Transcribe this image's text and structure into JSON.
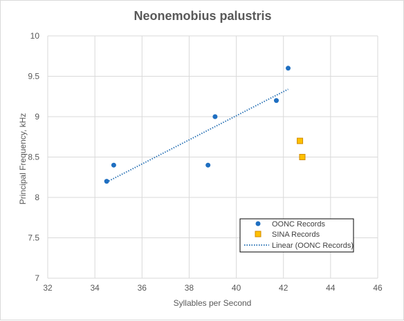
{
  "chart_data": {
    "type": "scatter",
    "title": "Neonemobius palustris",
    "xlabel": "Syllables per Second",
    "ylabel": "Principal Frequency, kHz",
    "xlim": [
      32,
      46
    ],
    "ylim": [
      7,
      10
    ],
    "x_ticks": [
      "32",
      "34",
      "36",
      "38",
      "40",
      "42",
      "44",
      "46"
    ],
    "y_ticks": [
      "7",
      "7.5",
      "8",
      "8.5",
      "9",
      "9.5",
      "10"
    ],
    "grid": true,
    "legend_position": "bottom-right",
    "series": [
      {
        "name": "OONC Records",
        "marker": "circle",
        "color": "#1f6fc1",
        "points": [
          {
            "x": 34.5,
            "y": 8.2
          },
          {
            "x": 34.8,
            "y": 8.4
          },
          {
            "x": 38.8,
            "y": 8.4
          },
          {
            "x": 39.1,
            "y": 9.0
          },
          {
            "x": 41.7,
            "y": 9.2
          },
          {
            "x": 42.2,
            "y": 9.6
          }
        ]
      },
      {
        "name": "SINA Records",
        "marker": "square",
        "color": "#ffc000",
        "edge_color": "#d08a00",
        "points": [
          {
            "x": 42.7,
            "y": 8.7
          },
          {
            "x": 42.8,
            "y": 8.5
          }
        ]
      }
    ],
    "trendline": {
      "name": "Linear (OONC Records)",
      "style": "dotted",
      "color": "#2e75b6",
      "from": {
        "x": 34.5,
        "y": 8.19
      },
      "to": {
        "x": 42.2,
        "y": 9.34
      }
    }
  }
}
